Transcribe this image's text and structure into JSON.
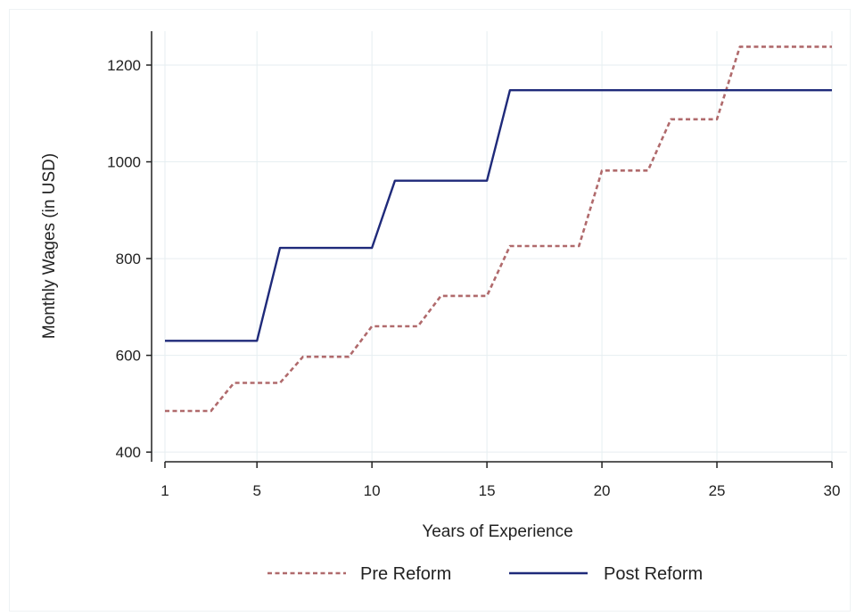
{
  "chart_data": {
    "type": "line",
    "title": "",
    "xlabel": "Years of Experience",
    "ylabel": "Monthly Wages (in USD)",
    "xlim": [
      1,
      30
    ],
    "ylim": [
      380,
      1270
    ],
    "x_ticks": [
      1,
      5,
      10,
      15,
      20,
      25,
      30
    ],
    "y_ticks": [
      400,
      600,
      800,
      1000,
      1200
    ],
    "grid": true,
    "legend_position": "bottom",
    "x": [
      1,
      2,
      3,
      4,
      5,
      6,
      7,
      8,
      9,
      10,
      11,
      12,
      13,
      14,
      15,
      16,
      17,
      18,
      19,
      20,
      21,
      22,
      23,
      24,
      25,
      26,
      27,
      28,
      29,
      30
    ],
    "series": [
      {
        "name": "Pre Reform",
        "style": "dotted",
        "color": "#b06a6c",
        "values": [
          485,
          485,
          485,
          543,
          543,
          543,
          597,
          597,
          597,
          660,
          660,
          660,
          723,
          723,
          723,
          826,
          826,
          826,
          826,
          982,
          982,
          982,
          1088,
          1088,
          1088,
          1238,
          1238,
          1238,
          1238,
          1238
        ]
      },
      {
        "name": "Post Reform",
        "style": "solid",
        "color": "#1f2a7a",
        "values": [
          630,
          630,
          630,
          630,
          630,
          822,
          822,
          822,
          822,
          822,
          961,
          961,
          961,
          961,
          961,
          1148,
          1148,
          1148,
          1148,
          1148,
          1148,
          1148,
          1148,
          1148,
          1148,
          1148,
          1148,
          1148,
          1148,
          1148
        ]
      }
    ]
  }
}
